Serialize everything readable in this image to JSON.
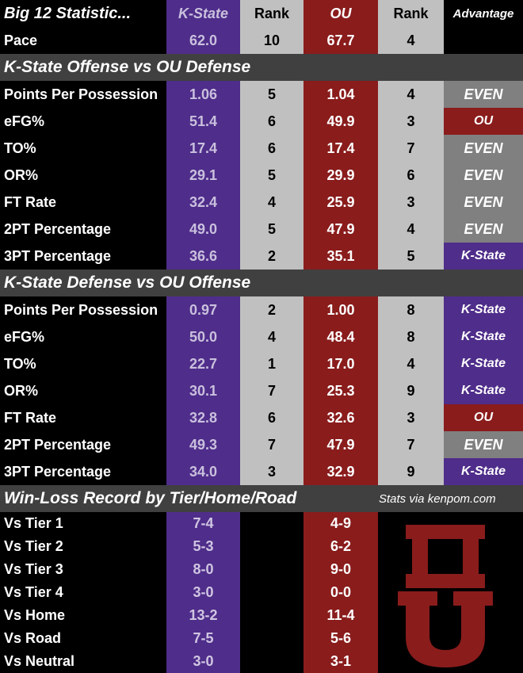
{
  "header": {
    "title": "Big 12 Statistic...",
    "team1": "K-State",
    "rank1": "Rank",
    "team2": "OU",
    "rank2": "Rank",
    "advantage": "Advantage"
  },
  "pace": {
    "label": "Pace",
    "ks": "62.0",
    "ks_rank": "10",
    "ou": "67.7",
    "ou_rank": "4",
    "adv": ""
  },
  "section1": {
    "title": "K-State Offense vs OU Defense",
    "rows": [
      {
        "label": "Points Per Possession",
        "ks": "1.06",
        "ks_rank": "5",
        "ou": "1.04",
        "ou_rank": "4",
        "adv": "EVEN"
      },
      {
        "label": "eFG%",
        "ks": "51.4",
        "ks_rank": "6",
        "ou": "49.9",
        "ou_rank": "3",
        "adv": "OU"
      },
      {
        "label": "TO%",
        "ks": "17.4",
        "ks_rank": "6",
        "ou": "17.4",
        "ou_rank": "7",
        "adv": "EVEN"
      },
      {
        "label": "OR%",
        "ks": "29.1",
        "ks_rank": "5",
        "ou": "29.9",
        "ou_rank": "6",
        "adv": "EVEN"
      },
      {
        "label": "FT Rate",
        "ks": "32.4",
        "ks_rank": "4",
        "ou": "25.9",
        "ou_rank": "3",
        "adv": "EVEN"
      },
      {
        "label": "2PT Percentage",
        "ks": "49.0",
        "ks_rank": "5",
        "ou": "47.9",
        "ou_rank": "4",
        "adv": "EVEN"
      },
      {
        "label": "3PT Percentage",
        "ks": "36.6",
        "ks_rank": "2",
        "ou": "35.1",
        "ou_rank": "5",
        "adv": "K-State"
      }
    ]
  },
  "section2": {
    "title": "K-State Defense vs OU Offense",
    "rows": [
      {
        "label": "Points Per Possession",
        "ks": "0.97",
        "ks_rank": "2",
        "ou": "1.00",
        "ou_rank": "8",
        "adv": "K-State"
      },
      {
        "label": "eFG%",
        "ks": "50.0",
        "ks_rank": "4",
        "ou": "48.4",
        "ou_rank": "8",
        "adv": "K-State"
      },
      {
        "label": "TO%",
        "ks": "22.7",
        "ks_rank": "1",
        "ou": "17.0",
        "ou_rank": "4",
        "adv": "K-State"
      },
      {
        "label": "OR%",
        "ks": "30.1",
        "ks_rank": "7",
        "ou": "25.3",
        "ou_rank": "9",
        "adv": "K-State"
      },
      {
        "label": "FT Rate",
        "ks": "32.8",
        "ks_rank": "6",
        "ou": "32.6",
        "ou_rank": "3",
        "adv": "OU"
      },
      {
        "label": "2PT Percentage",
        "ks": "49.3",
        "ks_rank": "7",
        "ou": "47.9",
        "ou_rank": "7",
        "adv": "EVEN"
      },
      {
        "label": "3PT Percentage",
        "ks": "34.0",
        "ks_rank": "3",
        "ou": "32.9",
        "ou_rank": "9",
        "adv": "K-State"
      }
    ]
  },
  "section3": {
    "title": "Win-Loss Record by Tier/Home/Road",
    "source": "Stats via kenpom.com",
    "rows": [
      {
        "label": "Vs Tier 1",
        "ks": "7-4",
        "ou": "4-9"
      },
      {
        "label": "Vs Tier 2",
        "ks": "5-3",
        "ou": "6-2"
      },
      {
        "label": "Vs Tier 3",
        "ks": "8-0",
        "ou": "9-0"
      },
      {
        "label": "Vs Tier 4",
        "ks": "3-0",
        "ou": "0-0"
      },
      {
        "label": "Vs Home",
        "ks": "13-2",
        "ou": "11-4"
      },
      {
        "label": "Vs Road",
        "ks": "7-5",
        "ou": "5-6"
      },
      {
        "label": "Vs Neutral",
        "ks": "3-0",
        "ou": "3-1"
      }
    ]
  },
  "logo": {
    "name": "ou-logo",
    "color": "#8a1c1c"
  },
  "colors": {
    "kstate": "#4f2d8a",
    "ou": "#8a1c1c",
    "even": "#808080",
    "rank": "#c0c0c0",
    "section": "#404040"
  }
}
